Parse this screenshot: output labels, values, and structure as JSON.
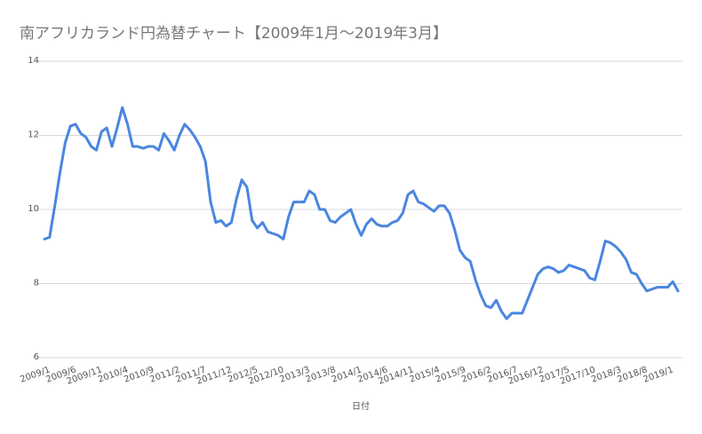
{
  "chart_data": {
    "type": "line",
    "title": "南アフリカランド円為替チャート【2009年1月～2019年3月】",
    "x_label": "日付",
    "color": "#4a86e0",
    "categories": [
      "2009/1",
      null,
      null,
      null,
      null,
      "2009/6",
      null,
      null,
      null,
      null,
      "2009/11",
      null,
      null,
      null,
      null,
      "2010/4",
      null,
      null,
      null,
      null,
      "2010/9",
      null,
      null,
      null,
      null,
      "2011/2",
      null,
      null,
      null,
      null,
      "2011/7",
      null,
      null,
      null,
      null,
      "2011/12",
      null,
      null,
      null,
      null,
      "2012/5",
      null,
      null,
      null,
      null,
      "2012/10",
      null,
      null,
      null,
      null,
      "2013/3",
      null,
      null,
      null,
      null,
      "2013/8",
      null,
      null,
      null,
      null,
      "2014/1",
      null,
      null,
      null,
      null,
      "2014/6",
      null,
      null,
      null,
      null,
      "2014/11",
      null,
      null,
      null,
      null,
      "2015/4",
      null,
      null,
      null,
      null,
      "2015/9",
      null,
      null,
      null,
      null,
      "2016/2",
      null,
      null,
      null,
      null,
      "2016/7",
      null,
      null,
      null,
      null,
      "2016/12",
      null,
      null,
      null,
      null,
      "2017/5",
      null,
      null,
      null,
      null,
      "2017/10",
      null,
      null,
      null,
      null,
      "2018/3",
      null,
      null,
      null,
      null,
      "2018/8",
      null,
      null,
      null,
      null,
      "2019/1",
      null,
      null
    ],
    "values": [
      9.2,
      9.25,
      10.1,
      11.0,
      11.8,
      12.25,
      12.3,
      12.05,
      11.95,
      11.7,
      11.6,
      12.1,
      12.2,
      11.7,
      12.2,
      12.75,
      12.3,
      11.7,
      11.7,
      11.65,
      11.7,
      11.7,
      11.6,
      12.05,
      11.85,
      11.6,
      12.0,
      12.3,
      12.15,
      11.95,
      11.7,
      11.3,
      10.2,
      9.65,
      9.7,
      9.55,
      9.65,
      10.3,
      10.8,
      10.6,
      9.7,
      9.5,
      9.65,
      9.4,
      9.35,
      9.3,
      9.2,
      9.8,
      10.2,
      10.2,
      10.2,
      10.5,
      10.4,
      10.0,
      10.0,
      9.7,
      9.65,
      9.8,
      9.9,
      10.0,
      9.6,
      9.3,
      9.6,
      9.75,
      9.6,
      9.55,
      9.55,
      9.65,
      9.7,
      9.9,
      10.4,
      10.5,
      10.2,
      10.15,
      10.05,
      9.95,
      10.1,
      10.1,
      9.9,
      9.45,
      8.9,
      8.7,
      8.6,
      8.1,
      7.7,
      7.4,
      7.35,
      7.55,
      7.25,
      7.05,
      7.2,
      7.2,
      7.2,
      7.55,
      7.9,
      8.25,
      8.4,
      8.45,
      8.4,
      8.3,
      8.35,
      8.5,
      8.45,
      8.4,
      8.35,
      8.15,
      8.1,
      8.6,
      9.15,
      9.1,
      9.0,
      8.85,
      8.65,
      8.3,
      8.25,
      8.0,
      7.8,
      7.85,
      7.9,
      7.9,
      7.9,
      8.05,
      7.8
    ],
    "ylim": [
      6,
      14
    ],
    "yticks": [
      6,
      8,
      10,
      12,
      14
    ],
    "grid": true
  }
}
